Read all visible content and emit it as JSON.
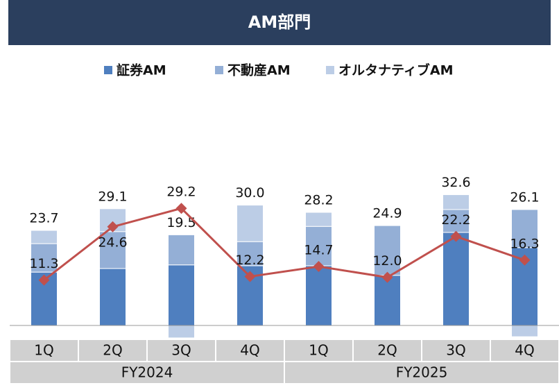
{
  "chart_data": {
    "type": "bar",
    "title": "AM部門",
    "categories": [
      "1Q",
      "2Q",
      "3Q",
      "4Q",
      "1Q",
      "2Q",
      "3Q",
      "4Q"
    ],
    "groups": [
      "FY2024",
      "FY2025"
    ],
    "series": [
      {
        "name": "証券AM",
        "color": "#4f7fbf",
        "values": [
          13.3,
          14.2,
          15.1,
          14.9,
          14.9,
          12.5,
          23.2,
          19.4
        ]
      },
      {
        "name": "不動産AM",
        "color": "#94afd6",
        "values": [
          7.1,
          9.2,
          7.5,
          6.0,
          9.8,
          12.4,
          5.7,
          9.5
        ]
      },
      {
        "name": "オルタナティブAM",
        "color": "#bccde6",
        "values": [
          3.3,
          5.7,
          -3.1,
          9.1,
          3.5,
          0,
          3.7,
          -2.8
        ]
      }
    ],
    "totals": [
      23.7,
      29.1,
      19.5,
      30.0,
      28.2,
      24.9,
      32.6,
      26.1
    ],
    "totals_labels": [
      "23.7",
      "29.1",
      "19.5",
      "30.0",
      "28.2",
      "24.9",
      "32.6",
      "26.1"
    ],
    "line": {
      "color": "#c0504d",
      "values": [
        11.3,
        24.6,
        29.2,
        12.2,
        14.7,
        12.0,
        22.2,
        16.3
      ],
      "value_labels": [
        "11.3",
        "24.6",
        "29.2",
        "12.2",
        "14.7",
        "12.0",
        "22.2",
        "16.3"
      ]
    },
    "ylim": [
      -5,
      40
    ]
  }
}
